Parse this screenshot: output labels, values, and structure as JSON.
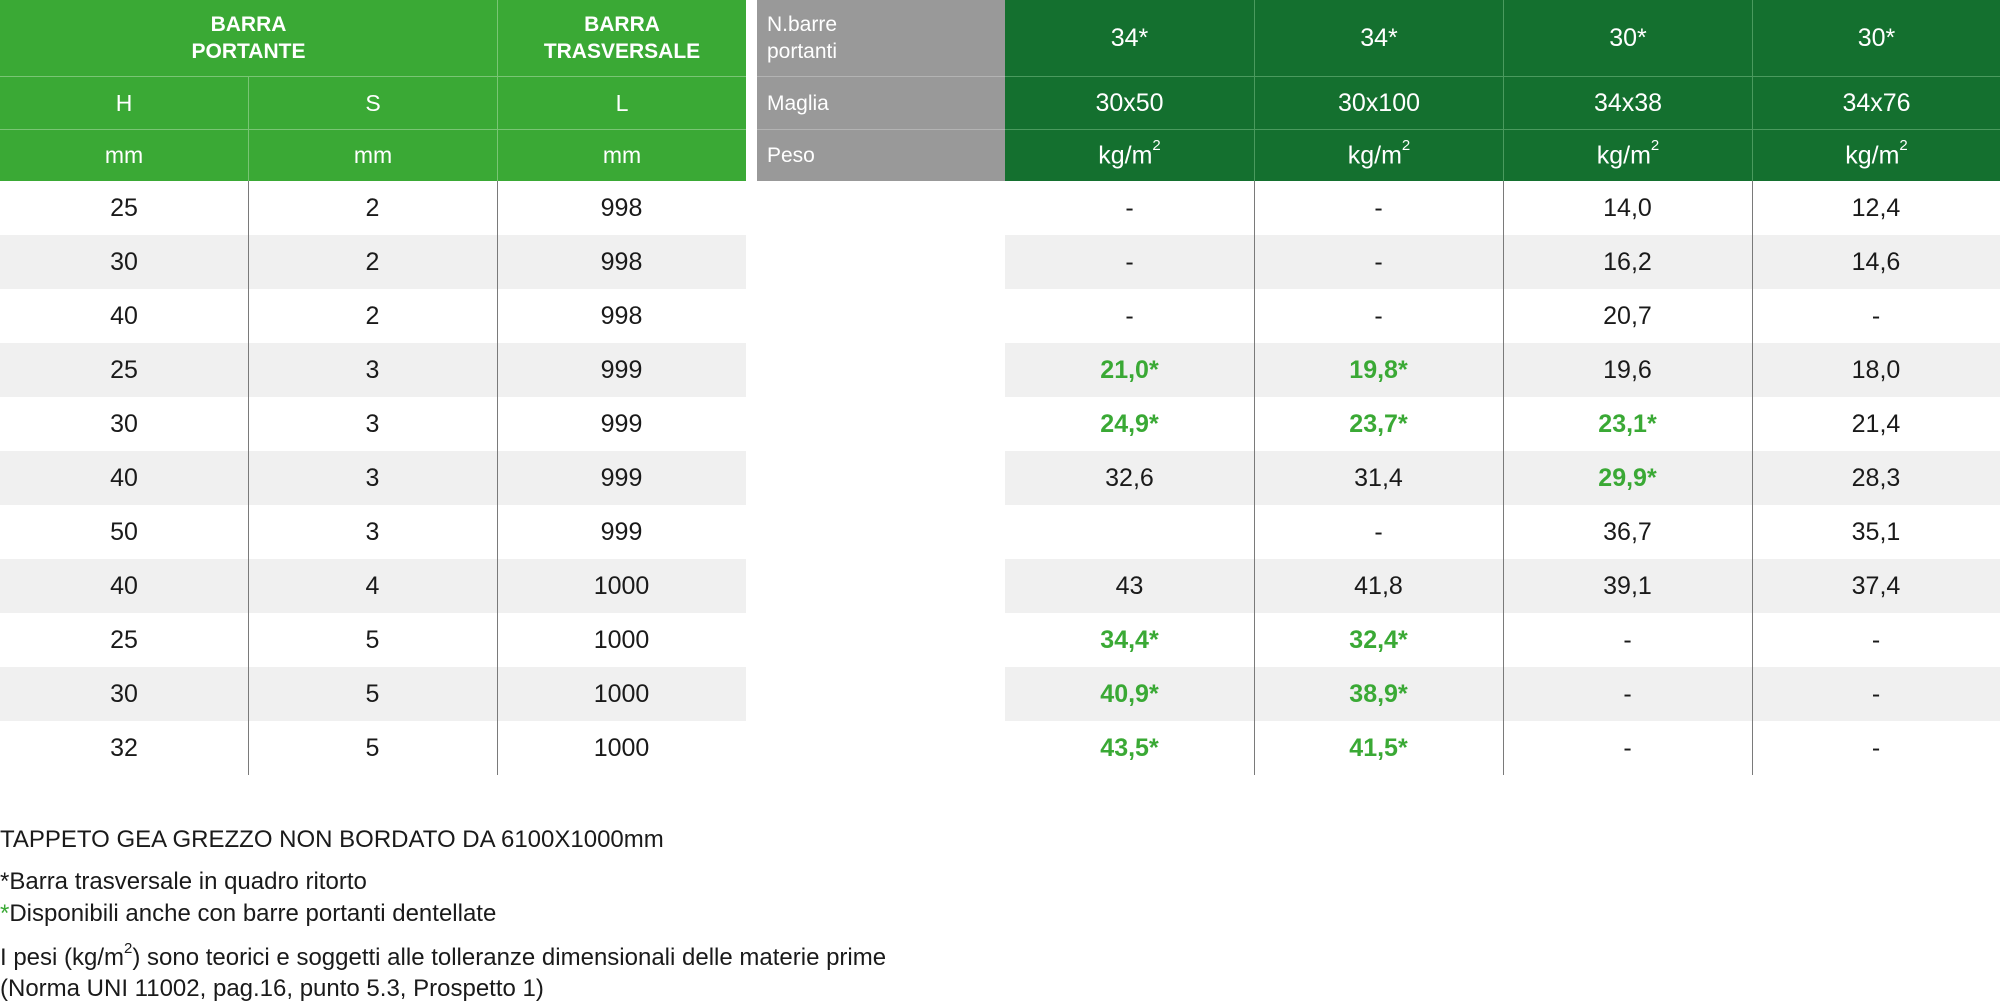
{
  "left_header": {
    "barra_portante": [
      "BARRA",
      "PORTANTE"
    ],
    "barra_trasversale": [
      "BARRA",
      "TRASVERSALE"
    ],
    "columns": [
      "H",
      "S",
      "L"
    ],
    "units": [
      "mm",
      "mm",
      "mm"
    ]
  },
  "right_header": {
    "labels": {
      "nbarre": [
        "N.barre",
        "portanti"
      ],
      "maglia": "Maglia",
      "peso": "Peso"
    },
    "nbarre_values": [
      "34*",
      "34*",
      "30*",
      "30*"
    ],
    "maglia_values": [
      "30x50",
      "30x100",
      "34x38",
      "34x76"
    ],
    "peso_unit": "kg/m",
    "peso_unit_sup": "2"
  },
  "rows": [
    {
      "h": "25",
      "s": "2",
      "l": "998",
      "v": [
        "-",
        "-",
        "14,0",
        "12,4"
      ],
      "green": [
        false,
        false,
        false,
        false
      ]
    },
    {
      "h": "30",
      "s": "2",
      "l": "998",
      "v": [
        "-",
        "-",
        "16,2",
        "14,6"
      ],
      "green": [
        false,
        false,
        false,
        false
      ]
    },
    {
      "h": "40",
      "s": "2",
      "l": "998",
      "v": [
        "-",
        "-",
        "20,7",
        "-"
      ],
      "green": [
        false,
        false,
        false,
        false
      ]
    },
    {
      "h": "25",
      "s": "3",
      "l": "999",
      "v": [
        "21,0*",
        "19,8*",
        "19,6",
        "18,0"
      ],
      "green": [
        true,
        true,
        false,
        false
      ]
    },
    {
      "h": "30",
      "s": "3",
      "l": "999",
      "v": [
        "24,9*",
        "23,7*",
        "23,1*",
        "21,4"
      ],
      "green": [
        true,
        true,
        true,
        false
      ]
    },
    {
      "h": "40",
      "s": "3",
      "l": "999",
      "v": [
        "32,6",
        "31,4",
        "29,9*",
        "28,3"
      ],
      "green": [
        false,
        false,
        true,
        false
      ]
    },
    {
      "h": "50",
      "s": "3",
      "l": "999",
      "v": [
        "",
        "-",
        "36,7",
        "35,1"
      ],
      "green": [
        false,
        false,
        false,
        false
      ]
    },
    {
      "h": "40",
      "s": "4",
      "l": "1000",
      "v": [
        "43",
        "41,8",
        "39,1",
        "37,4"
      ],
      "green": [
        false,
        false,
        false,
        false
      ]
    },
    {
      "h": "25",
      "s": "5",
      "l": "1000",
      "v": [
        "34,4*",
        "32,4*",
        "-",
        "-"
      ],
      "green": [
        true,
        true,
        false,
        false
      ]
    },
    {
      "h": "30",
      "s": "5",
      "l": "1000",
      "v": [
        "40,9*",
        "38,9*",
        "-",
        "-"
      ],
      "green": [
        true,
        true,
        false,
        false
      ]
    },
    {
      "h": "32",
      "s": "5",
      "l": "1000",
      "v": [
        "43,5*",
        "41,5*",
        "-",
        "-"
      ],
      "green": [
        true,
        true,
        false,
        false
      ]
    }
  ],
  "notes": {
    "title": "TAPPETO GEA GREZZO NON BORDATO DA 6100X1000mm",
    "star_note": "*Barra trasversale in quadro ritorto",
    "green_star": "*",
    "green_note": "Disponibili anche con barre portanti dentellate",
    "weights_pre": "I pesi (kg/m",
    "weights_sup": "2",
    "weights_post": ") sono teorici e soggetti alle tolleranze dimensionali delle materie prime",
    "norma": "(Norma UNI 11002, pag.16, punto 5.3, Prospetto 1)"
  },
  "colors": {
    "light_green": "#3aa935",
    "dark_green": "#14702f",
    "grey": "#999999",
    "stripe": "#f0f0f0"
  }
}
